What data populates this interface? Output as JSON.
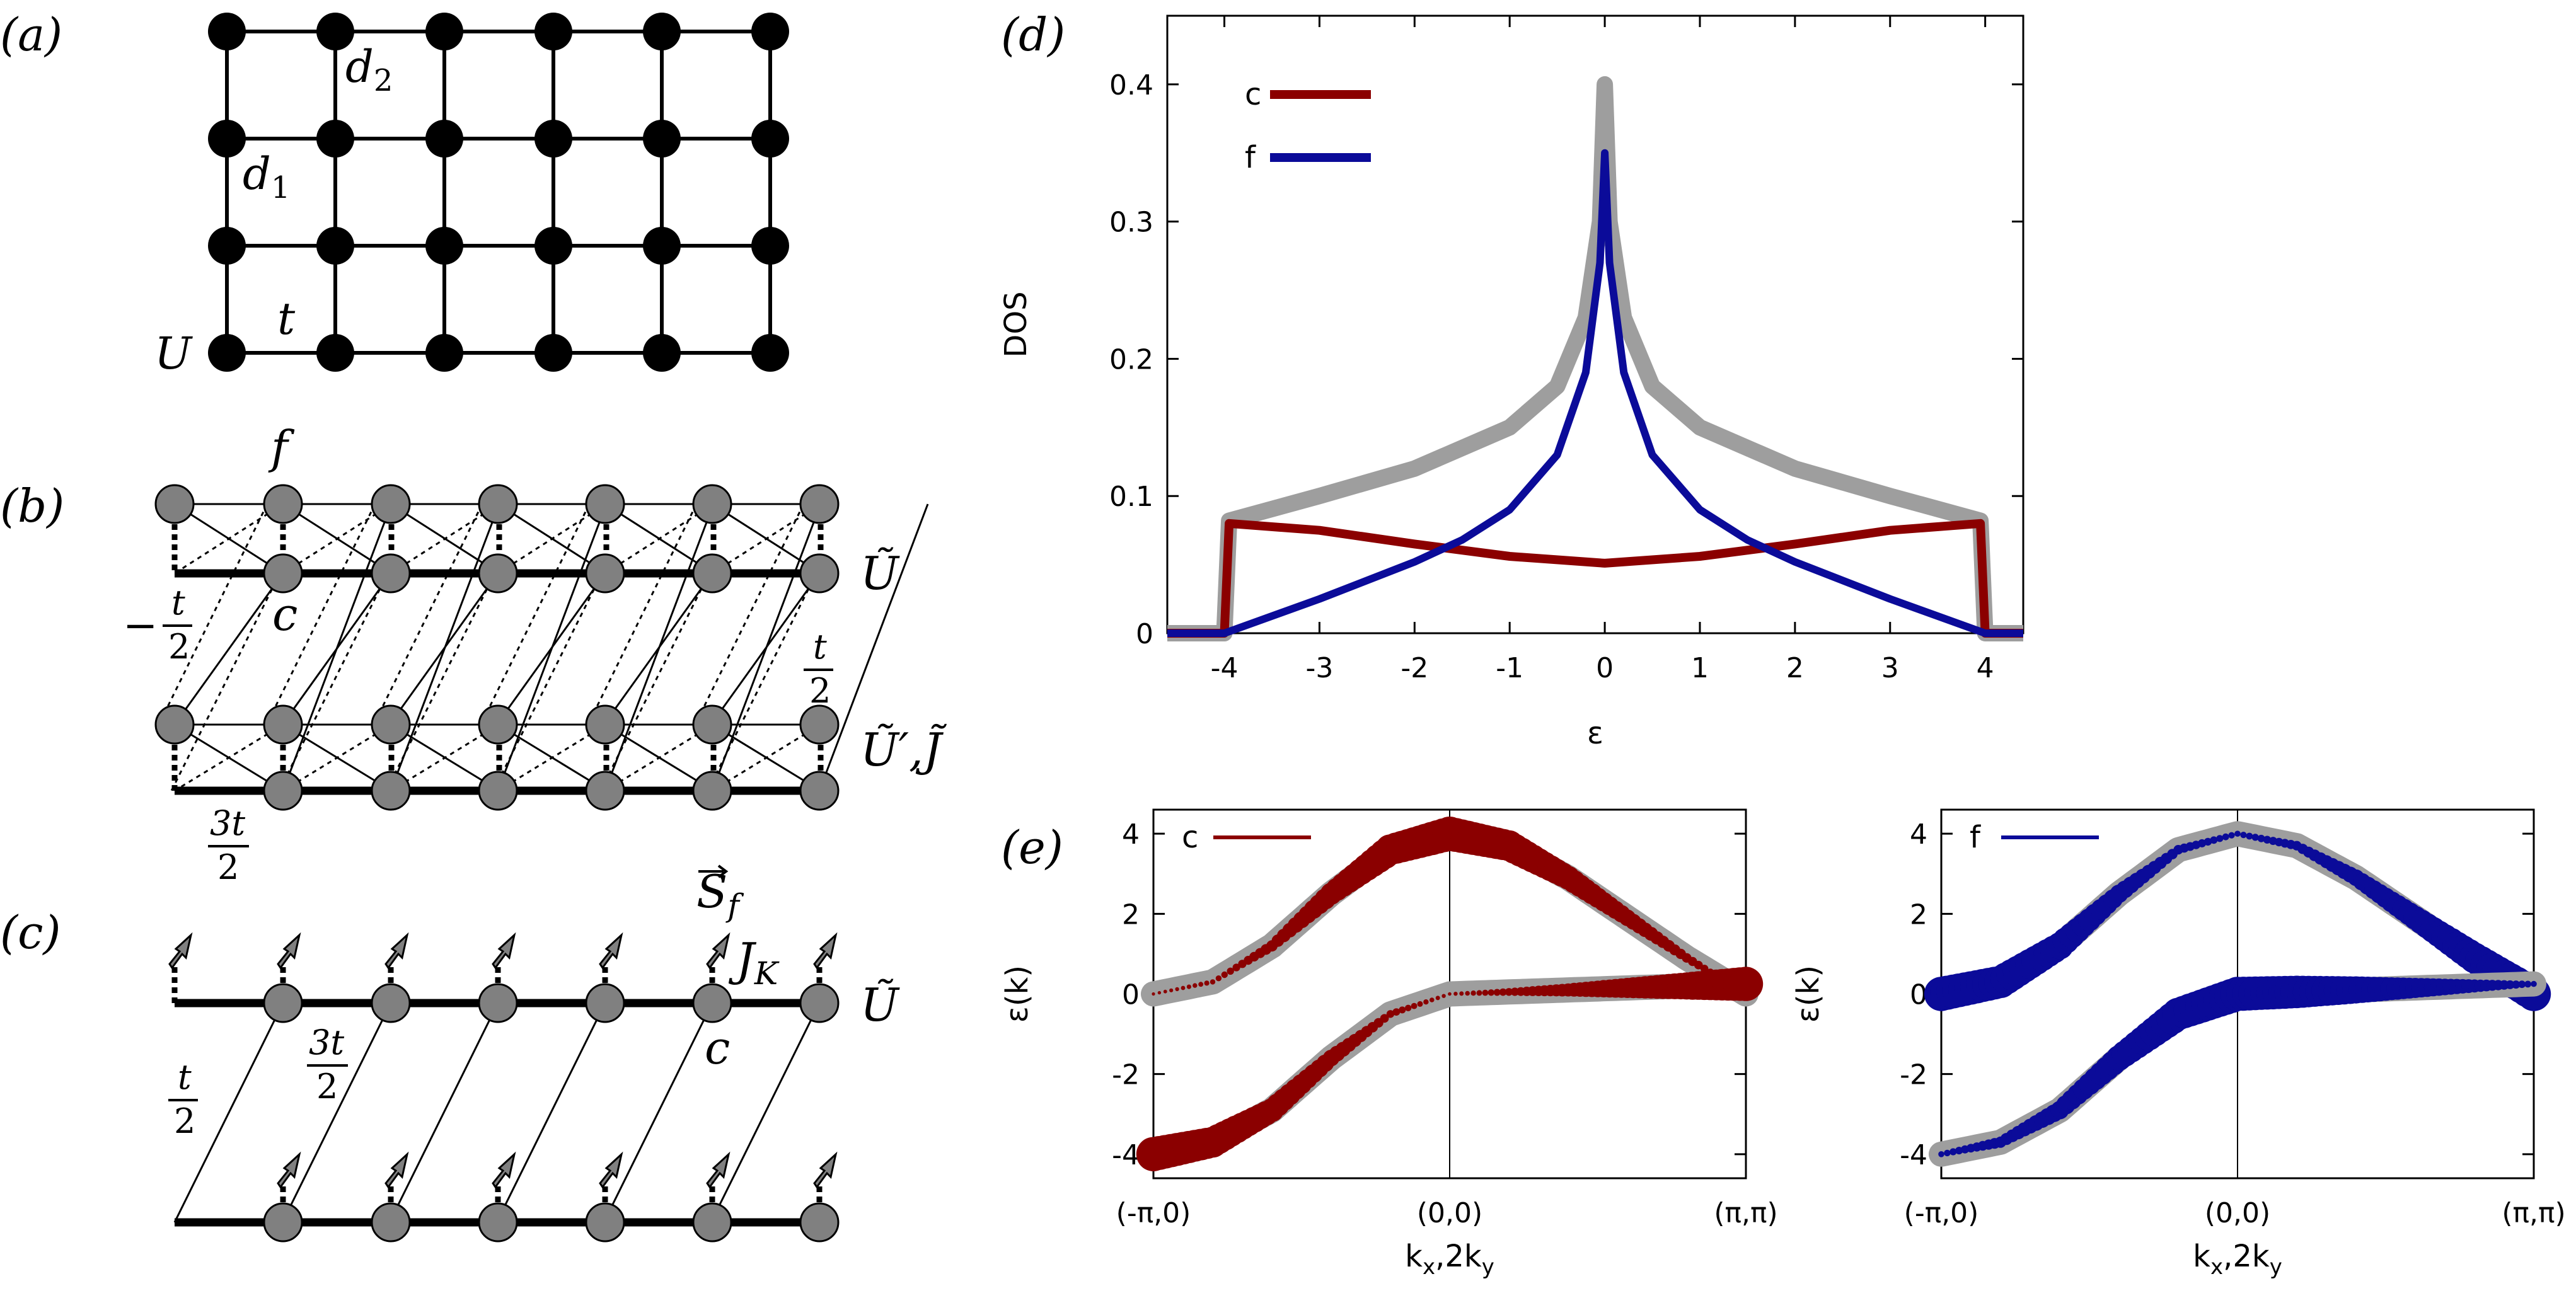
{
  "panels": {
    "a": {
      "label": "(a)",
      "labels": {
        "d2": "d",
        "d2_sub": "2",
        "d1": "d",
        "d1_sub": "1",
        "t": "t",
        "U": "U"
      }
    },
    "b": {
      "label": "(b)",
      "labels": {
        "f": "f",
        "c": "c",
        "Ut": "Ũ",
        "minus_t2": "−",
        "t_frac_num": "t",
        "t_frac_den": "2",
        "t2_num": "t",
        "t2_den": "2",
        "Up": "Ũ′,J̃",
        "t3_num": "3t",
        "t3_den": "2"
      }
    },
    "c": {
      "label": "(c)",
      "labels": {
        "S": "S",
        "S_sub": "f",
        "JK": "J",
        "JK_sub": "K",
        "Ut": "Ũ",
        "c": "c",
        "t3_num": "3t",
        "t3_den": "2",
        "t2_num": "t",
        "t2_den": "2"
      }
    },
    "d": {
      "label": "(d)"
    },
    "e": {
      "label": "(e)"
    }
  },
  "colors": {
    "c": "#8b0000",
    "f": "#0b0b99",
    "total": "#9e9e9e"
  },
  "chart_data": [
    {
      "id": "dos",
      "type": "line",
      "xlabel": "ε",
      "ylabel": "DOS",
      "xlim": [
        -4.6,
        4.4
      ],
      "ylim": [
        0,
        0.45
      ],
      "xticks": [
        "-4",
        "-3",
        "-2",
        "-1",
        "0",
        "1",
        "2",
        "3",
        "4"
      ],
      "xtick_values": [
        -4,
        -3,
        -2,
        -1,
        0,
        1,
        2,
        3,
        4
      ],
      "yticks": [
        "0",
        "0.1",
        "0.2",
        "0.3",
        "0.4"
      ],
      "ytick_values": [
        0,
        0.1,
        0.2,
        0.3,
        0.4
      ],
      "legend": "top-left",
      "series": [
        {
          "name": "c",
          "color": "#8b0000",
          "x": [
            -4.6,
            -4.0,
            -3.95,
            -3,
            -2,
            -1,
            0,
            1,
            2,
            3,
            3.95,
            4.0,
            4.4
          ],
          "y": [
            0,
            0,
            0.08,
            0.075,
            0.065,
            0.056,
            0.051,
            0.056,
            0.065,
            0.075,
            0.08,
            0,
            0
          ]
        },
        {
          "name": "f",
          "color": "#0b0b99",
          "x": [
            -4.6,
            -4,
            -3,
            -2,
            -1.5,
            -1,
            -0.5,
            -0.2,
            -0.05,
            0,
            0.05,
            0.2,
            0.5,
            1,
            1.5,
            2,
            3,
            4,
            4.4
          ],
          "y": [
            0,
            0,
            0.025,
            0.052,
            0.068,
            0.09,
            0.13,
            0.19,
            0.27,
            0.35,
            0.27,
            0.19,
            0.13,
            0.09,
            0.068,
            0.052,
            0.025,
            0,
            0
          ]
        },
        {
          "x": [
            -4.6,
            -4.0,
            -3.95,
            -3,
            -2,
            -1,
            -0.5,
            -0.2,
            -0.05,
            0,
            0.05,
            0.2,
            0.5,
            1,
            2,
            3,
            3.95,
            4.0,
            4.4
          ],
          "y": [
            0,
            0,
            0.082,
            0.1,
            0.12,
            0.15,
            0.18,
            0.23,
            0.3,
            0.4,
            0.3,
            0.23,
            0.18,
            0.15,
            0.12,
            0.1,
            0.082,
            0,
            0
          ]
        }
      ]
    },
    {
      "id": "bands-c",
      "type": "line",
      "legend_name": "c",
      "xlabel": "k",
      "xlabel_sub": "x",
      "xlabel_rest": ",2k",
      "xlabel_sub2": "y",
      "ylabel": "ε(k)",
      "xticks": [
        "(-π,0)",
        "(0,0)",
        "(π,π)"
      ],
      "yticks": [
        "-4",
        "-2",
        "0",
        "2",
        "4"
      ],
      "ytick_values": [
        -4,
        -2,
        0,
        2,
        4
      ],
      "ylim": [
        -4.6,
        4.6
      ],
      "color": "#8b0000",
      "upper_band": {
        "x": [
          0,
          0.1,
          0.2,
          0.3,
          0.4,
          0.5,
          0.6,
          0.7,
          0.8,
          0.9,
          1.0
        ],
        "y": [
          0,
          0.3,
          1.2,
          2.5,
          3.6,
          4.0,
          3.7,
          2.9,
          1.9,
          0.9,
          0
        ],
        "weight": [
          0.02,
          0.08,
          0.25,
          0.55,
          0.8,
          0.9,
          0.8,
          0.6,
          0.4,
          0.2,
          0.05
        ]
      },
      "lower_band": {
        "x": [
          0,
          0.1,
          0.2,
          0.3,
          0.4,
          0.5,
          0.6,
          0.7,
          0.8,
          0.9,
          1.0
        ],
        "y": [
          -4.0,
          -3.7,
          -2.9,
          -1.6,
          -0.5,
          0,
          0.05,
          0.1,
          0.15,
          0.2,
          0.25
        ],
        "weight": [
          0.9,
          0.8,
          0.6,
          0.4,
          0.15,
          0.03,
          0.15,
          0.3,
          0.5,
          0.7,
          0.9
        ]
      }
    },
    {
      "id": "bands-f",
      "type": "line",
      "legend_name": "f",
      "xlabel": "k",
      "xlabel_sub": "x",
      "xlabel_rest": ",2k",
      "xlabel_sub2": "y",
      "ylabel": "ε(k)",
      "xticks": [
        "(-π,0)",
        "(0,0)",
        "(π,π)"
      ],
      "yticks": [
        "-4",
        "-2",
        "0",
        "2",
        "4"
      ],
      "ytick_values": [
        -4,
        -2,
        0,
        2,
        4
      ],
      "ylim": [
        -4.6,
        4.6
      ],
      "color": "#0b0b99",
      "upper_band": {
        "x": [
          0,
          0.1,
          0.2,
          0.3,
          0.4,
          0.5,
          0.6,
          0.7,
          0.8,
          0.9,
          1.0
        ],
        "y": [
          0,
          0.3,
          1.2,
          2.5,
          3.6,
          4.0,
          3.7,
          2.9,
          1.9,
          0.9,
          0
        ],
        "weight": [
          0.9,
          0.85,
          0.7,
          0.45,
          0.2,
          0.1,
          0.2,
          0.4,
          0.6,
          0.8,
          0.9
        ]
      },
      "lower_band": {
        "x": [
          0,
          0.1,
          0.2,
          0.3,
          0.4,
          0.5,
          0.6,
          0.7,
          0.8,
          0.9,
          1.0
        ],
        "y": [
          -4.0,
          -3.7,
          -2.9,
          -1.6,
          -0.5,
          0,
          0.05,
          0.1,
          0.15,
          0.2,
          0.25
        ],
        "weight": [
          0.1,
          0.25,
          0.45,
          0.65,
          0.85,
          0.9,
          0.85,
          0.7,
          0.5,
          0.3,
          0.1
        ]
      }
    }
  ]
}
